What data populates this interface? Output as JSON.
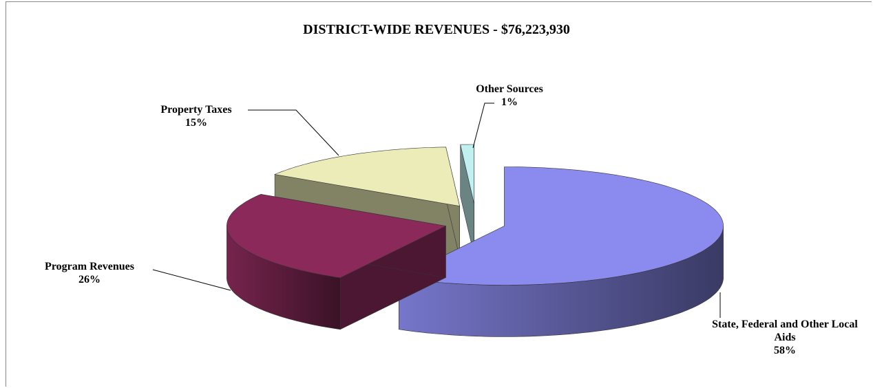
{
  "chart_data": {
    "type": "pie",
    "title": "DISTRICT-WIDE REVENUES - $76,223,930",
    "categories": [
      "State, Federal and Other Local Aids",
      "Program Revenues",
      "Property Taxes",
      "Other Sources"
    ],
    "values": [
      58,
      26,
      15,
      1
    ],
    "value_labels": [
      "58%",
      "26%",
      "15%",
      "1%"
    ],
    "colors": [
      "#8b8bef",
      "#8b2a5a",
      "#ececb8",
      "#c0f0f0"
    ],
    "exploded": true,
    "three_d": true
  }
}
